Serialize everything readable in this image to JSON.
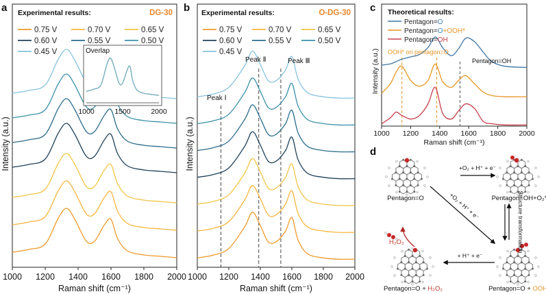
{
  "panels": {
    "a": {
      "label": "a",
      "legend_title": "Experimental results:",
      "sample": "DG-30",
      "inset_title": "Overlap",
      "inset_ticks": [
        "1000",
        "1500",
        "2000"
      ]
    },
    "b": {
      "label": "b",
      "legend_title": "Experimental results:",
      "sample": "O-DG-30",
      "peaks": [
        "Peak Ⅰ",
        "Peak Ⅱ",
        "Peak Ⅲ"
      ]
    },
    "c": {
      "label": "c",
      "legend_title": "Theoretical results:",
      "legend": [
        {
          "prefix": "Pentagon=",
          "suffix": "O",
          "suffix_color": "#3a7fc1",
          "extra": "",
          "color": "#3f77a6"
        },
        {
          "prefix": "Pentagon=",
          "suffix": "O",
          "suffix_color": "#3a7fc1",
          "extra": "+OOH*",
          "color": "#e69524"
        },
        {
          "prefix": "Pentagon=",
          "suffix": "OH",
          "suffix_color": "#c7404a",
          "extra": "",
          "color": "#c7404a"
        }
      ],
      "annotations": {
        "ooh": "OOH* on pentagon=O",
        "oh": "Pentagon=OH"
      }
    },
    "d": {
      "label": "d",
      "species": {
        "top_left": "Pentagon=O",
        "top_right": "Pentagon=OH+O₂*",
        "bottom_left": "Pentagon=O + H₂O₂",
        "bottom_right": "Pentagon=O + OOH*",
        "h2o2": "H₂O₂"
      },
      "arrows": {
        "top": "+O₂ + H⁺ + e⁻",
        "diagonal": "+O₂ + H⁺ + e⁻",
        "bottom": "+ H⁺ + e⁻",
        "right": "Structure transformation"
      }
    }
  },
  "colors": {
    "voltage": {
      "0.75 V": "#ef9a2c",
      "0.70 V": "#f6b53c",
      "0.65 V": "#f2c445",
      "0.60 V": "#1f4159",
      "0.55 V": "#2a6b8c",
      "0.50 V": "#3a90a8",
      "0.45 V": "#86c2dd"
    }
  },
  "chart_data": [
    {
      "type": "line",
      "panel": "a",
      "title": "",
      "xlabel": "Raman shift (cm⁻¹)",
      "ylabel": "Intensity (a.u.)",
      "xlim": [
        1000,
        2000
      ],
      "xticks": [
        "1000",
        "1200",
        "1400",
        "1600",
        "1800",
        "2000"
      ],
      "legend_placement": "top-left",
      "x": [
        1000,
        1100,
        1200,
        1280,
        1330,
        1380,
        1450,
        1500,
        1560,
        1600,
        1640,
        1700,
        1800,
        1900,
        2000
      ],
      "series": [
        {
          "name": "0.75 V",
          "values": [
            0.55,
            0.65,
            0.85,
            1.8,
            2.15,
            1.75,
            0.95,
            0.95,
            1.55,
            1.75,
            1.05,
            0.6,
            0.45,
            0.4,
            0.35
          ],
          "offset": 0.0
        },
        {
          "name": "0.70 V",
          "values": [
            0.55,
            0.65,
            0.85,
            1.8,
            2.15,
            1.75,
            0.95,
            0.95,
            1.55,
            1.75,
            1.05,
            0.6,
            0.45,
            0.4,
            0.35
          ],
          "offset": 1.0
        },
        {
          "name": "0.65 V",
          "values": [
            0.55,
            0.65,
            0.85,
            1.8,
            2.15,
            1.75,
            0.95,
            0.95,
            1.55,
            1.75,
            1.05,
            0.6,
            0.45,
            0.4,
            0.35
          ],
          "offset": 2.0
        },
        {
          "name": "0.60 V",
          "values": [
            0.55,
            0.65,
            0.85,
            1.8,
            2.15,
            1.75,
            0.95,
            0.95,
            1.55,
            1.75,
            1.05,
            0.6,
            0.45,
            0.4,
            0.35
          ],
          "offset": 3.1
        },
        {
          "name": "0.55 V",
          "values": [
            0.55,
            0.65,
            0.85,
            1.8,
            2.15,
            1.75,
            0.95,
            0.95,
            1.55,
            1.75,
            1.05,
            0.6,
            0.45,
            0.4,
            0.35
          ],
          "offset": 4.0
        },
        {
          "name": "0.50 V",
          "values": [
            0.55,
            0.65,
            0.85,
            1.8,
            2.15,
            1.75,
            0.95,
            0.95,
            1.55,
            1.75,
            1.05,
            0.6,
            0.45,
            0.4,
            0.35
          ],
          "offset": 4.9
        },
        {
          "name": "0.45 V",
          "values": [
            0.55,
            0.65,
            0.85,
            1.8,
            2.15,
            1.75,
            0.95,
            0.95,
            1.55,
            1.75,
            1.05,
            0.6,
            0.45,
            0.4,
            0.35
          ],
          "offset": 5.8
        }
      ]
    },
    {
      "type": "line",
      "panel": "b",
      "title": "",
      "xlabel": "Raman shift (cm⁻¹)",
      "ylabel": "Intensity (a.u.)",
      "xlim": [
        1000,
        2000
      ],
      "xticks": [
        "1000",
        "1200",
        "1400",
        "1600",
        "1800",
        "2000"
      ],
      "legend_placement": "top-left",
      "reference_lines_x": [
        1150,
        1390,
        1530
      ],
      "x": [
        1000,
        1100,
        1200,
        1300,
        1350,
        1400,
        1450,
        1500,
        1560,
        1600,
        1640,
        1700,
        1800,
        1900,
        2000
      ],
      "series": [
        {
          "name": "0.75 V",
          "values": [
            0.35,
            0.45,
            0.7,
            1.5,
            2.05,
            1.55,
            0.95,
            0.95,
            1.35,
            1.85,
            1.0,
            0.5,
            0.35,
            0.3,
            0.3
          ],
          "offset": 0.0
        },
        {
          "name": "0.70 V",
          "values": [
            0.35,
            0.45,
            0.7,
            1.5,
            2.05,
            1.55,
            0.95,
            0.95,
            1.35,
            1.85,
            1.0,
            0.5,
            0.35,
            0.3,
            0.3
          ],
          "offset": 1.0
        },
        {
          "name": "0.65 V",
          "values": [
            0.35,
            0.45,
            0.7,
            1.5,
            2.05,
            1.55,
            0.95,
            0.95,
            1.35,
            1.85,
            1.0,
            0.5,
            0.35,
            0.3,
            0.3
          ],
          "offset": 2.0
        },
        {
          "name": "0.60 V",
          "values": [
            0.35,
            0.45,
            0.7,
            1.5,
            2.05,
            1.55,
            0.95,
            0.95,
            1.35,
            1.85,
            1.0,
            0.5,
            0.35,
            0.3,
            0.3
          ],
          "offset": 3.0
        },
        {
          "name": "0.55 V",
          "values": [
            0.35,
            0.45,
            0.7,
            1.5,
            2.05,
            1.55,
            0.95,
            0.95,
            1.35,
            1.85,
            1.0,
            0.5,
            0.35,
            0.3,
            0.3
          ],
          "offset": 4.0
        },
        {
          "name": "0.50 V",
          "values": [
            0.35,
            0.45,
            0.7,
            1.5,
            2.05,
            1.55,
            0.95,
            0.95,
            1.35,
            1.85,
            1.0,
            0.5,
            0.35,
            0.3,
            0.3
          ],
          "offset": 5.0
        },
        {
          "name": "0.45 V",
          "values": [
            0.35,
            0.45,
            0.7,
            1.5,
            2.05,
            1.55,
            0.95,
            0.95,
            1.35,
            1.85,
            1.0,
            0.5,
            0.35,
            0.3,
            0.3
          ],
          "offset": 6.0
        }
      ]
    },
    {
      "type": "line",
      "panel": "c",
      "title": "",
      "xlabel": "Raman shift (cm⁻¹)",
      "ylabel": "Intensity (a.u.)",
      "xlim": [
        1000,
        2000
      ],
      "xticks": [
        "1000",
        "1200",
        "1400",
        "1600",
        "1800",
        "2000"
      ],
      "legend_placement": "top-left",
      "reference_lines_x": [
        1140,
        1380,
        1540
      ],
      "x": [
        1000,
        1060,
        1100,
        1140,
        1200,
        1260,
        1320,
        1370,
        1420,
        1480,
        1530,
        1580,
        1640,
        1700,
        1760,
        1850,
        2000
      ],
      "series": [
        {
          "name": "Pentagon=O",
          "values": [
            0.2,
            0.25,
            0.35,
            0.45,
            0.55,
            0.65,
            0.95,
            1.4,
            0.95,
            0.6,
            0.9,
            1.35,
            1.2,
            0.75,
            0.35,
            0.15,
            0.1
          ],
          "offset": 2.4
        },
        {
          "name": "Pentagon=O+OOH*",
          "values": [
            0.2,
            0.6,
            1.1,
            1.35,
            0.75,
            0.5,
            0.75,
            1.45,
            0.7,
            0.45,
            0.75,
            0.95,
            0.6,
            0.25,
            0.1,
            0.05,
            0.05
          ],
          "offset": 1.2
        },
        {
          "name": "Pentagon=OH",
          "values": [
            0.1,
            0.35,
            0.6,
            0.45,
            0.3,
            0.45,
            0.95,
            1.65,
            0.55,
            0.3,
            0.65,
            0.95,
            0.75,
            0.2,
            0.1,
            0.05,
            0.05
          ],
          "offset": 0.0
        }
      ]
    }
  ]
}
